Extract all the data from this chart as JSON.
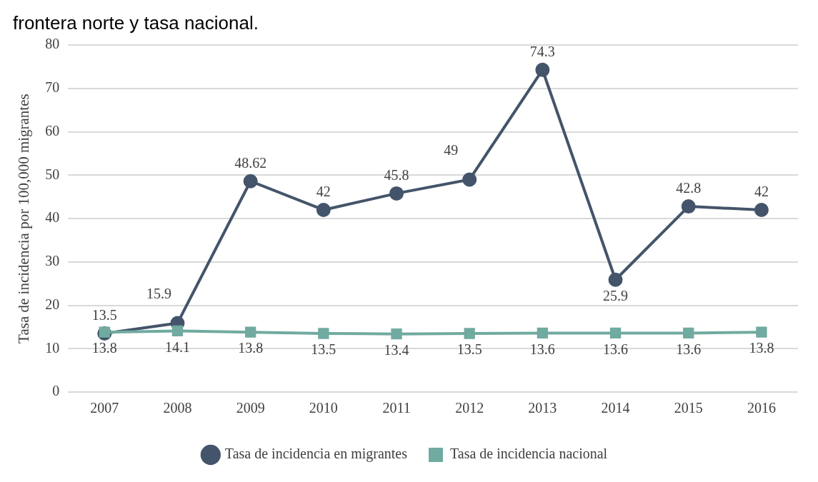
{
  "chart_data": {
    "type": "line",
    "title": "frontera norte y tasa nacional.",
    "ylabel": "Tasa de incidencia por 100,000 migrantes",
    "categories": [
      "2007",
      "2008",
      "2009",
      "2010",
      "2011",
      "2012",
      "2013",
      "2014",
      "2015",
      "2016"
    ],
    "series": [
      {
        "name": "Tasa de incidencia en migrantes",
        "color": "#44546a",
        "marker": "circle",
        "values": [
          13.5,
          15.9,
          48.62,
          42,
          45.8,
          49,
          74.3,
          25.9,
          42.8,
          42
        ]
      },
      {
        "name": "Tasa de incidencia nacional",
        "color": "#70aaa0",
        "marker": "square",
        "values": [
          13.8,
          14.1,
          13.8,
          13.5,
          13.4,
          13.5,
          13.6,
          13.6,
          13.6,
          13.8
        ]
      }
    ],
    "ylim": [
      0,
      80
    ],
    "yticks": [
      0,
      10,
      20,
      30,
      40,
      50,
      60,
      70,
      80
    ],
    "grid": "y",
    "legend": "bottom",
    "data_labels": true,
    "line_style": "solid"
  }
}
